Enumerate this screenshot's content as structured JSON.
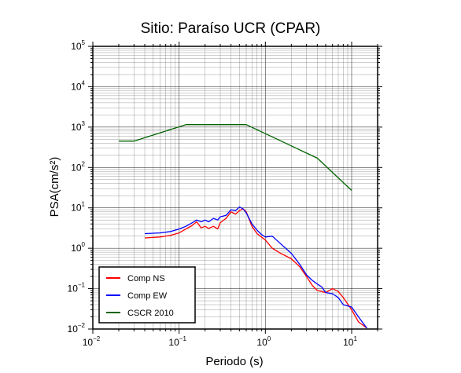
{
  "chart_data": {
    "type": "line",
    "title": "Sitio: Paraíso UCR (CPAR)",
    "xlabel": "Periodo (s)",
    "ylabel": "PSA(cm/s²)",
    "xscale": "log",
    "yscale": "log",
    "xlim": [
      0.01,
      20
    ],
    "ylim": [
      0.01,
      100000
    ],
    "grid": true,
    "legend_position": "bottom-left",
    "x_ticks": [
      {
        "base": "10",
        "exp": "−2"
      },
      {
        "base": "10",
        "exp": "−1"
      },
      {
        "base": "10",
        "exp": "0"
      },
      {
        "base": "10",
        "exp": "1"
      }
    ],
    "y_ticks": [
      {
        "base": "10",
        "exp": "−2"
      },
      {
        "base": "10",
        "exp": "−1"
      },
      {
        "base": "10",
        "exp": "0"
      },
      {
        "base": "10",
        "exp": "1"
      },
      {
        "base": "10",
        "exp": "2"
      },
      {
        "base": "10",
        "exp": "3"
      },
      {
        "base": "10",
        "exp": "4"
      },
      {
        "base": "10",
        "exp": "5"
      }
    ],
    "series": [
      {
        "name": "Comp NS",
        "color": "#ff0000",
        "x": [
          0.04,
          0.06,
          0.08,
          0.1,
          0.12,
          0.14,
          0.16,
          0.18,
          0.2,
          0.22,
          0.25,
          0.28,
          0.3,
          0.35,
          0.4,
          0.45,
          0.5,
          0.55,
          0.6,
          0.7,
          0.8,
          0.9,
          1.0,
          1.2,
          1.5,
          2.0,
          2.5,
          3.0,
          3.5,
          4.0,
          4.5,
          5.0,
          6.0,
          7.0,
          8.0,
          10.0,
          12.0,
          15.0
        ],
        "y": [
          1.8,
          1.9,
          2.1,
          2.4,
          3.0,
          3.6,
          4.5,
          3.2,
          3.5,
          3.1,
          3.5,
          3.0,
          4.3,
          5.5,
          8.0,
          7.0,
          8.5,
          9.5,
          8.0,
          3.5,
          2.3,
          1.9,
          1.6,
          1.0,
          0.75,
          0.55,
          0.35,
          0.2,
          0.12,
          0.09,
          0.085,
          0.08,
          0.1,
          0.085,
          0.06,
          0.03,
          0.015,
          0.0105
        ]
      },
      {
        "name": "Comp EW",
        "color": "#0000ff",
        "x": [
          0.04,
          0.06,
          0.08,
          0.1,
          0.12,
          0.14,
          0.16,
          0.18,
          0.2,
          0.22,
          0.25,
          0.28,
          0.3,
          0.35,
          0.4,
          0.45,
          0.5,
          0.55,
          0.6,
          0.7,
          0.8,
          0.9,
          1.0,
          1.2,
          1.5,
          2.0,
          2.5,
          3.0,
          3.5,
          4.0,
          4.5,
          5.0,
          6.0,
          7.0,
          8.0,
          10.0,
          12.0,
          15.0
        ],
        "y": [
          2.3,
          2.4,
          2.6,
          3.0,
          3.5,
          4.2,
          5.0,
          4.5,
          5.0,
          4.5,
          5.5,
          5.0,
          6.0,
          6.5,
          9.0,
          8.5,
          10.5,
          9.5,
          7.5,
          4.0,
          2.8,
          2.2,
          1.9,
          2.0,
          1.3,
          0.75,
          0.4,
          0.22,
          0.16,
          0.13,
          0.11,
          0.08,
          0.075,
          0.06,
          0.04,
          0.035,
          0.02,
          0.0105
        ]
      },
      {
        "name": "CSCR 2010",
        "color": "#006400",
        "x": [
          0.02,
          0.03,
          0.12,
          0.6,
          4.0,
          10.0
        ],
        "y": [
          450,
          450,
          1150,
          1150,
          170,
          27
        ]
      }
    ]
  }
}
